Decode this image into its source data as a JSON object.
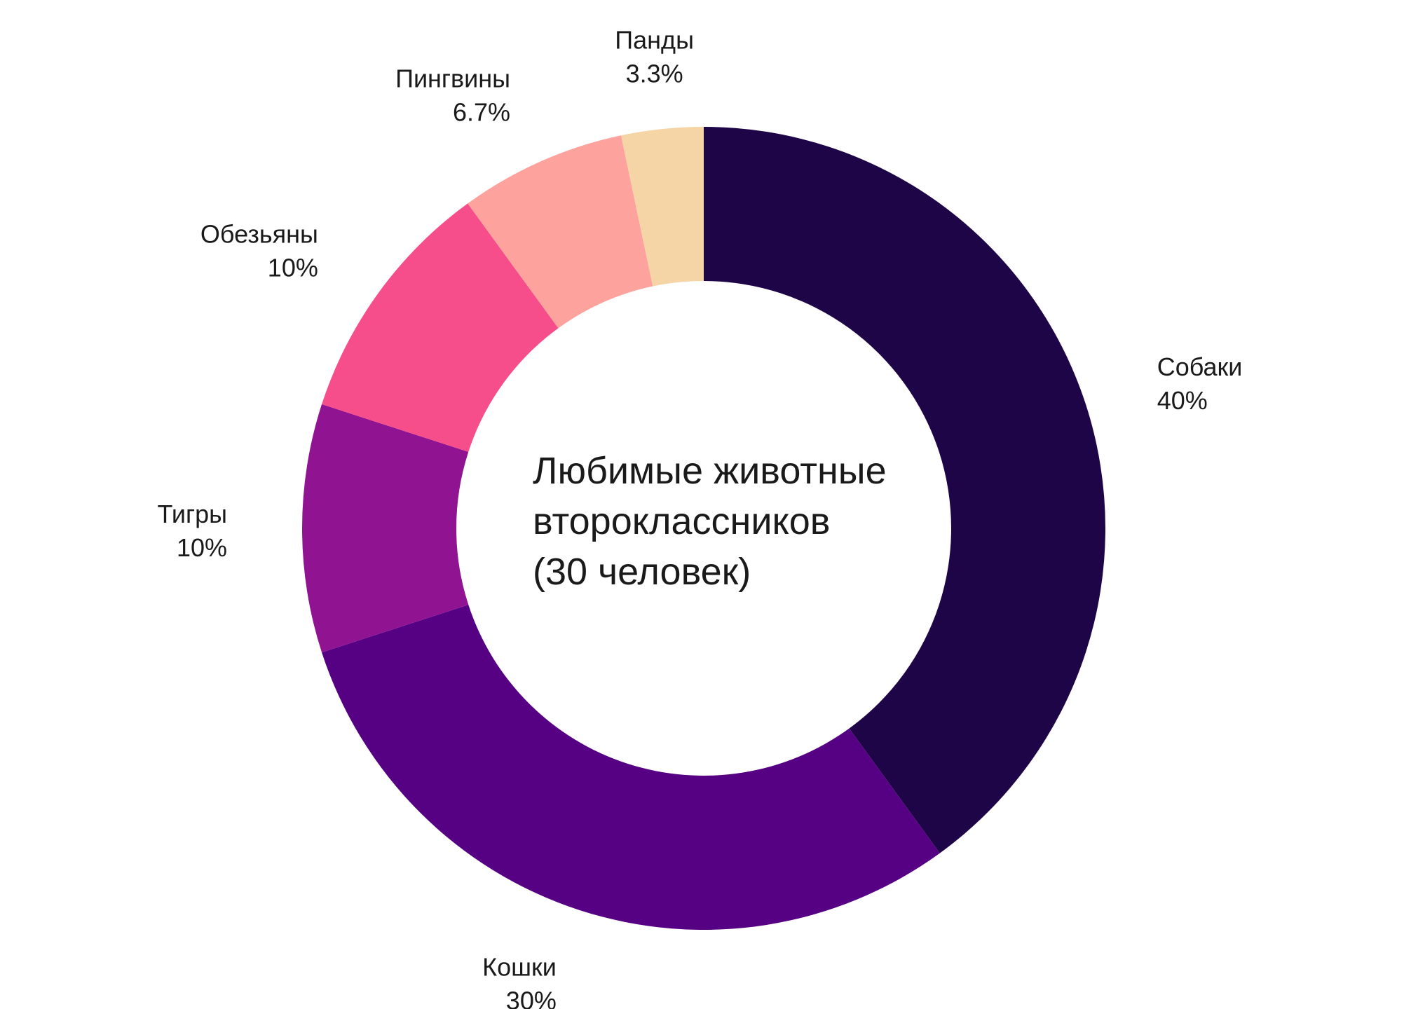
{
  "chart_data": {
    "type": "pie",
    "variant": "donut",
    "title_lines": [
      "Любимые животные",
      "второклассников",
      "(30 человек)"
    ],
    "start": "top",
    "direction": "clockwise",
    "legend": "none",
    "slices": [
      {
        "label": "Собаки",
        "value": 40,
        "value_label": "40%",
        "color": "#1e0547"
      },
      {
        "label": "Кошки",
        "value": 30,
        "value_label": "30%",
        "color": "#560083"
      },
      {
        "label": "Тигры",
        "value": 10,
        "value_label": "10%",
        "color": "#901392"
      },
      {
        "label": "Обезьяны",
        "value": 10,
        "value_label": "10%",
        "color": "#f64e8b"
      },
      {
        "label": "Пингвины",
        "value": 6.7,
        "value_label": "6.7%",
        "color": "#fea29d"
      },
      {
        "label": "Панды",
        "value": 3.3,
        "value_label": "3.3%",
        "color": "#f5d5a5"
      }
    ]
  }
}
